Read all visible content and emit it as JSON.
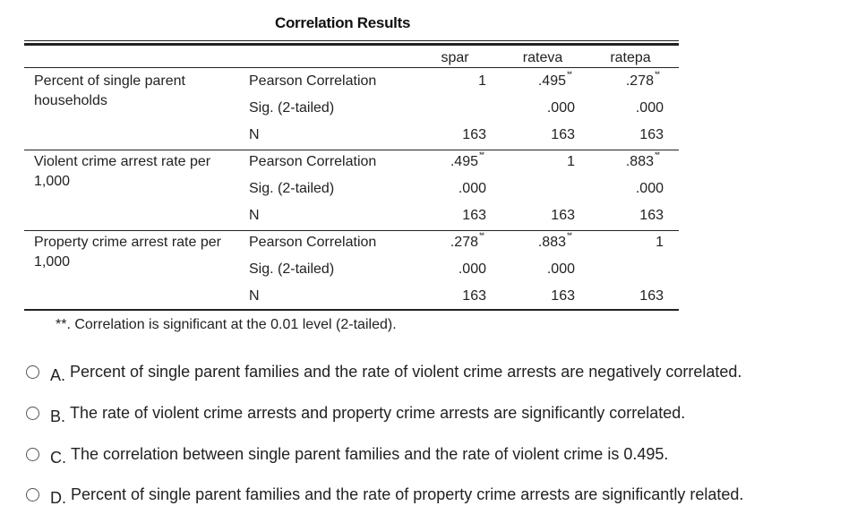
{
  "title": "Correlation Results",
  "columns": [
    "spar",
    "rateva",
    "ratepa"
  ],
  "row_groups": [
    {
      "label": "Percent of single parent households",
      "rows": [
        {
          "stat": "Pearson Correlation",
          "values": [
            "1",
            ".495",
            ".278"
          ],
          "sig_flags": [
            false,
            true,
            true
          ]
        },
        {
          "stat": "Sig. (2-tailed)",
          "values": [
            "",
            ".000",
            ".000"
          ],
          "sig_flags": [
            false,
            false,
            false
          ]
        },
        {
          "stat": "N",
          "values": [
            "163",
            "163",
            "163"
          ],
          "sig_flags": [
            false,
            false,
            false
          ]
        }
      ]
    },
    {
      "label": "Violent crime arrest rate per 1,000",
      "rows": [
        {
          "stat": "Pearson Correlation",
          "values": [
            ".495",
            "1",
            ".883"
          ],
          "sig_flags": [
            true,
            false,
            true
          ]
        },
        {
          "stat": "Sig. (2-tailed)",
          "values": [
            ".000",
            "",
            ".000"
          ],
          "sig_flags": [
            false,
            false,
            false
          ]
        },
        {
          "stat": "N",
          "values": [
            "163",
            "163",
            "163"
          ],
          "sig_flags": [
            false,
            false,
            false
          ]
        }
      ]
    },
    {
      "label": "Property crime arrest rate per 1,000",
      "rows": [
        {
          "stat": "Pearson Correlation",
          "values": [
            ".278",
            ".883",
            "1"
          ],
          "sig_flags": [
            true,
            true,
            false
          ]
        },
        {
          "stat": "Sig. (2-tailed)",
          "values": [
            ".000",
            ".000",
            ""
          ],
          "sig_flags": [
            false,
            false,
            false
          ]
        },
        {
          "stat": "N",
          "values": [
            "163",
            "163",
            "163"
          ],
          "sig_flags": [
            false,
            false,
            false
          ]
        }
      ]
    }
  ],
  "sig_marker": "**",
  "footnote": "**. Correlation is significant at the 0.01 level (2-tailed).",
  "options": [
    {
      "letter": "A.",
      "text": "Percent of single parent families and the rate of violent crime arrests are negatively correlated."
    },
    {
      "letter": "B.",
      "text": "The rate of violent crime arrests and property crime arrests are significantly correlated."
    },
    {
      "letter": "C.",
      "text": "The correlation between single parent families and the rate of violent crime is 0.495."
    },
    {
      "letter": "D.",
      "text": "Percent of single parent families and the rate of property crime arrests are significantly related."
    }
  ]
}
